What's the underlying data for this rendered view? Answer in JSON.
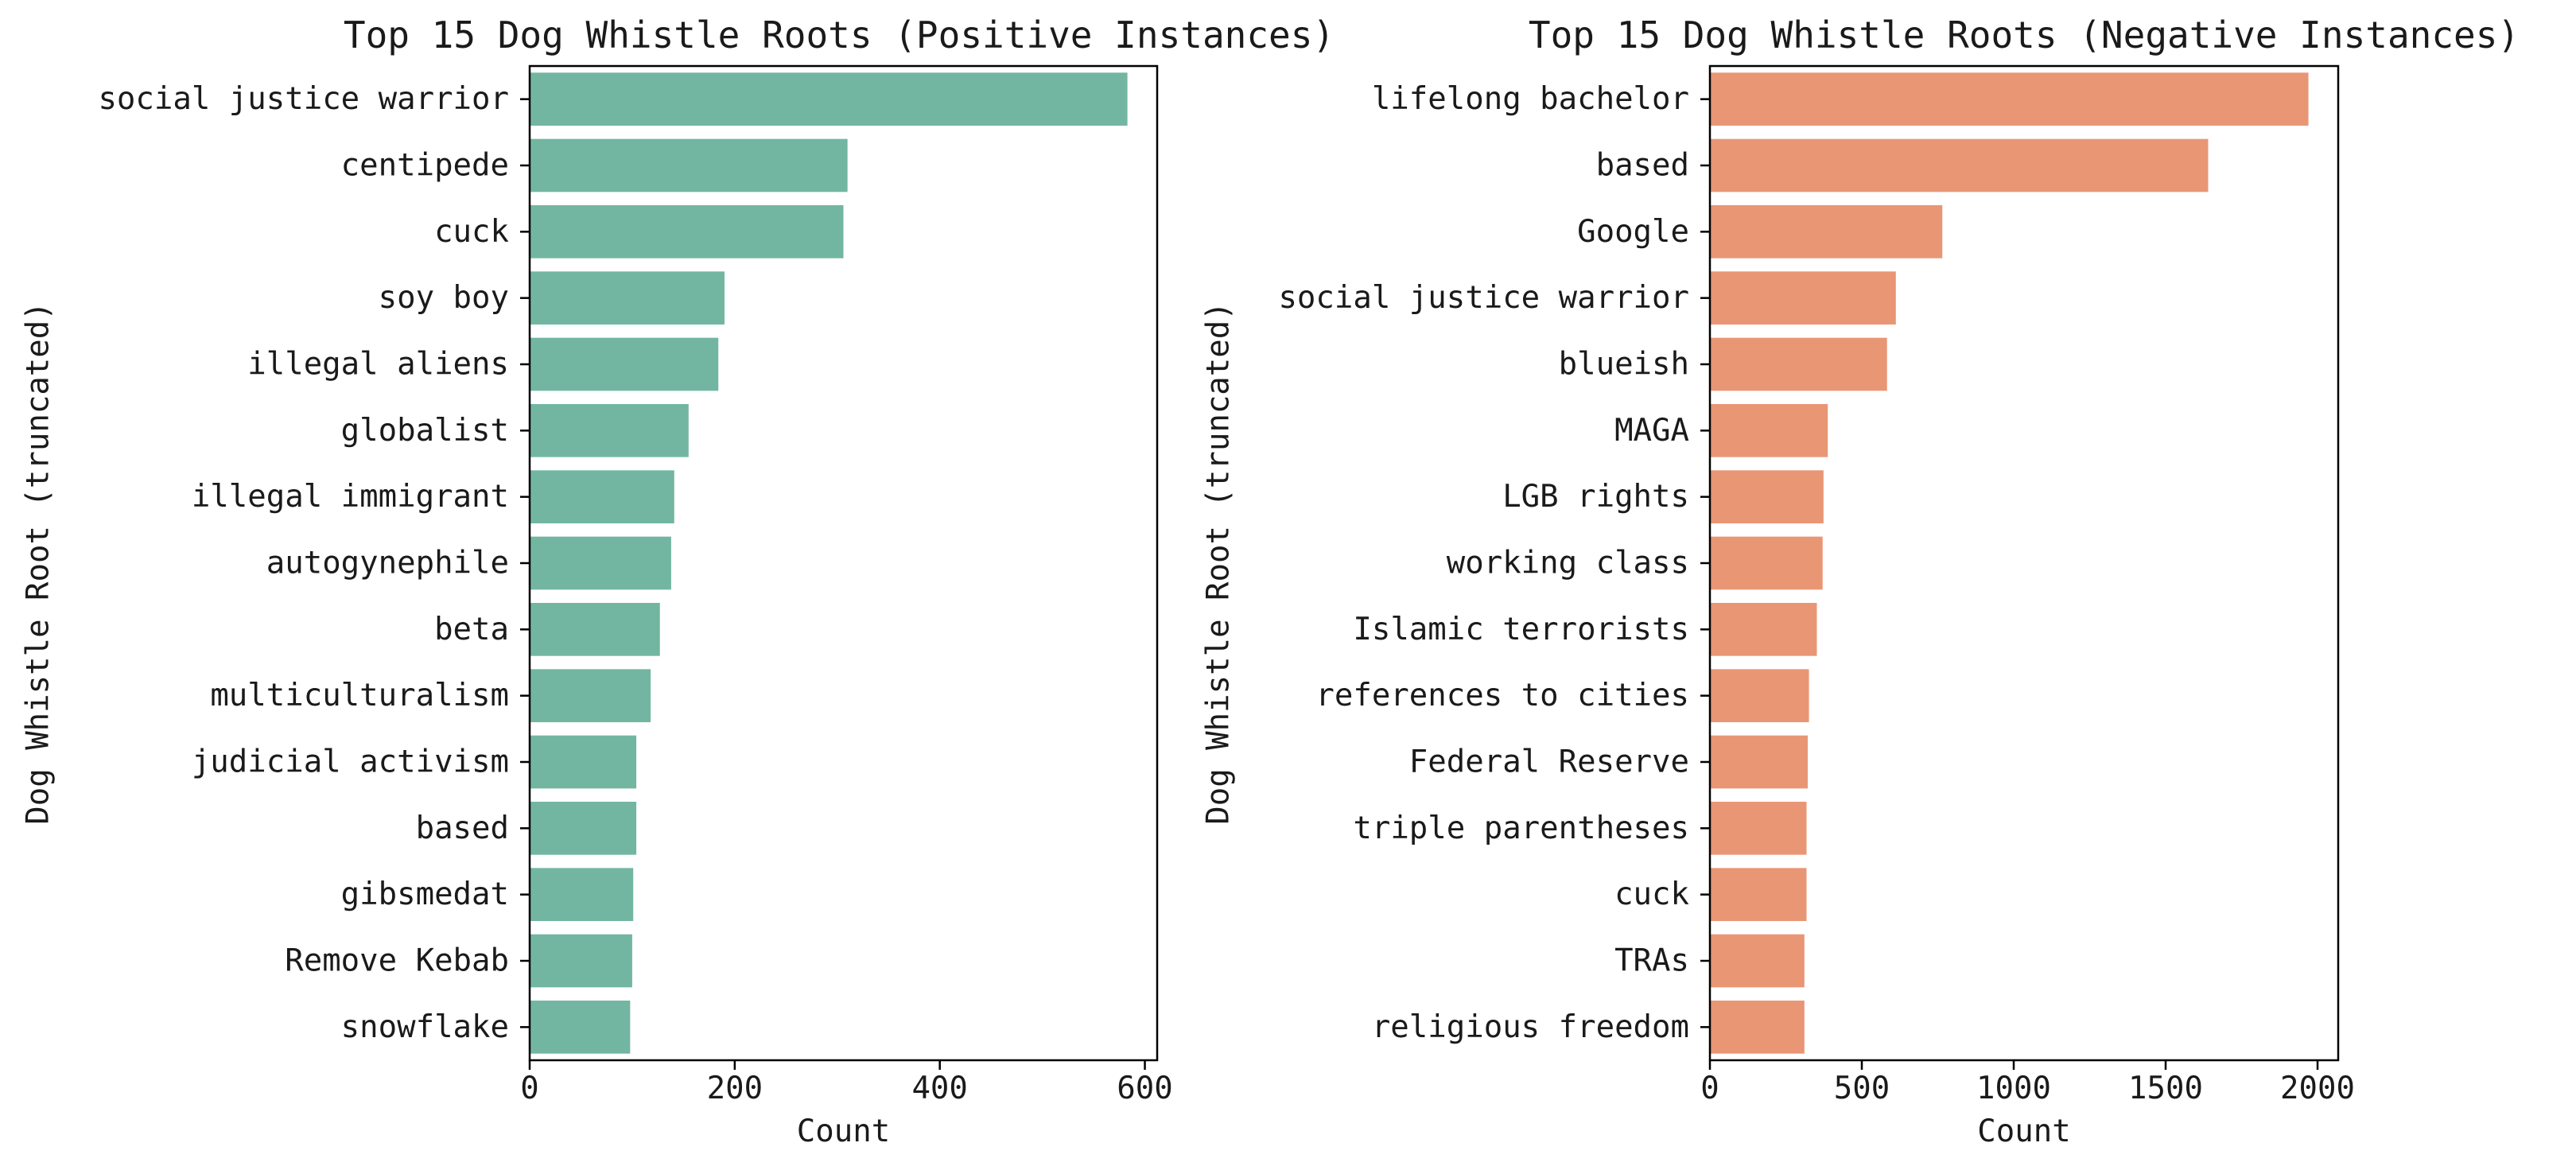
{
  "chart_data": [
    {
      "type": "bar",
      "orientation": "horizontal",
      "title": "Top 15 Dog Whistle Roots (Positive Instances)",
      "xlabel": "Count",
      "ylabel": "Dog Whistle Root (truncated)",
      "categories": [
        "social justice warrior",
        "centipede",
        "cuck",
        "soy boy",
        "illegal aliens",
        "globalist",
        "illegal immigrant",
        "autogynephile",
        "beta",
        "multiculturalism",
        "judicial activism",
        "based",
        "gibsmedat",
        "Remove Kebab",
        "snowflake"
      ],
      "values": [
        583,
        310,
        306,
        190,
        184,
        155,
        141,
        138,
        127,
        118,
        104,
        104,
        101,
        100,
        98
      ],
      "xlim": [
        0,
        612
      ],
      "xticks": [
        0,
        200,
        400,
        600
      ],
      "xtick_labels": [
        "0",
        "200",
        "400",
        "600"
      ],
      "color": "#72b6a1",
      "grid": false
    },
    {
      "type": "bar",
      "orientation": "horizontal",
      "title": "Top 15 Dog Whistle Roots (Negative Instances)",
      "xlabel": "Count",
      "ylabel": "Dog Whistle Root (truncated)",
      "categories": [
        "lifelong bachelor",
        "based",
        "Google",
        "social justice warrior",
        "blueish",
        "MAGA",
        "LGB rights",
        "working class",
        "Islamic terrorists",
        "references to cities",
        "Federal Reserve",
        "triple parentheses",
        "cuck",
        "TRAs",
        "religious freedom"
      ],
      "values": [
        1970,
        1640,
        765,
        612,
        583,
        388,
        374,
        371,
        352,
        326,
        322,
        318,
        318,
        311,
        311
      ],
      "xlim": [
        0,
        2068
      ],
      "xticks": [
        0,
        500,
        1000,
        1500,
        2000
      ],
      "xtick_labels": [
        "0",
        "500",
        "1000",
        "1500",
        "2000"
      ],
      "color": "#e99675",
      "grid": false
    }
  ]
}
